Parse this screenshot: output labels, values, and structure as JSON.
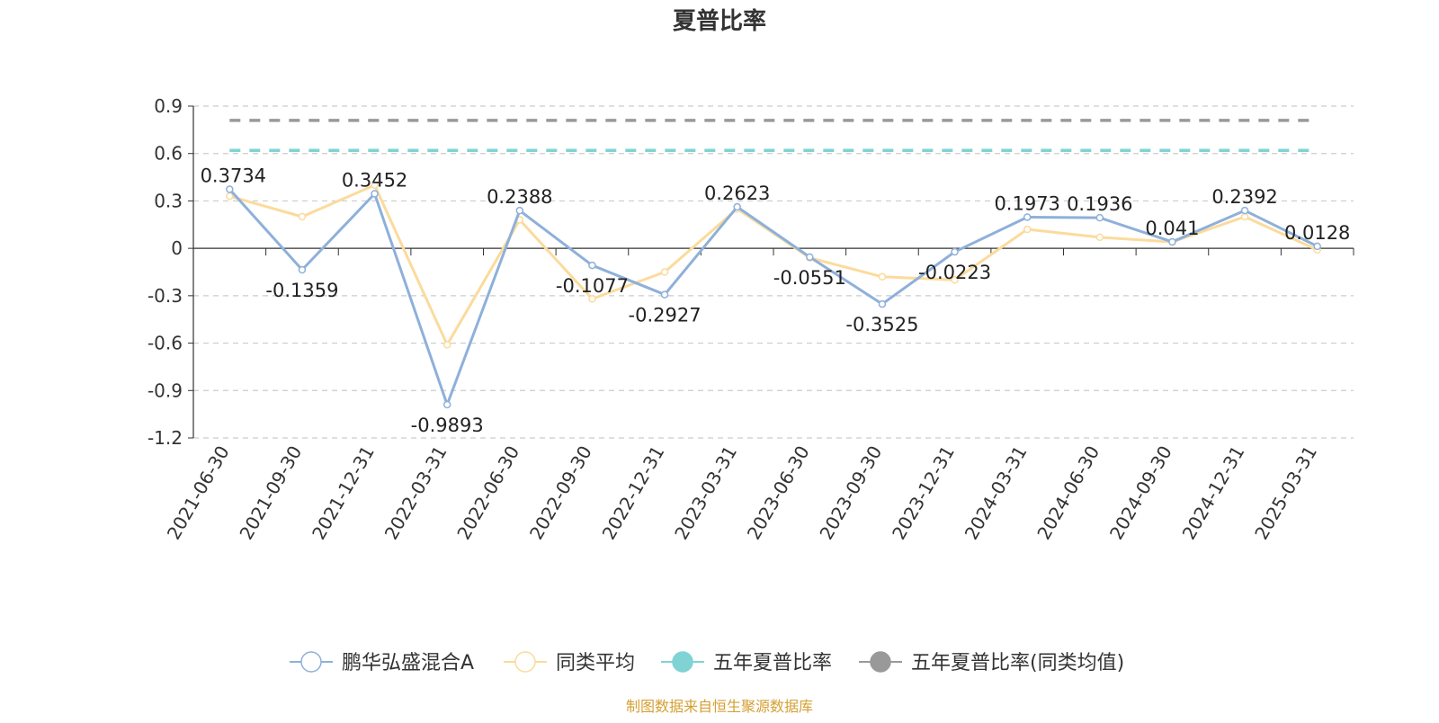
{
  "chart_data": {
    "type": "line",
    "title": "夏普比率",
    "xlabel": "",
    "ylabel": "",
    "ylim": [
      -1.2,
      0.9
    ],
    "yticks": [
      0.9,
      0.6,
      0.3,
      0,
      -0.3,
      -0.6,
      -0.9,
      -1.2
    ],
    "grid": true,
    "legend_position": "bottom",
    "categories": [
      "2021-06-30",
      "2021-09-30",
      "2021-12-31",
      "2022-03-31",
      "2022-06-30",
      "2022-09-30",
      "2022-12-31",
      "2023-03-31",
      "2023-06-30",
      "2023-09-30",
      "2023-12-31",
      "2024-03-31",
      "2024-06-30",
      "2024-09-30",
      "2024-12-31",
      "2025-03-31"
    ],
    "series": [
      {
        "name": "鹏华弘盛混合A",
        "color": "#8eb0da",
        "values": [
          0.3734,
          -0.1359,
          0.3452,
          -0.9893,
          0.2388,
          -0.1077,
          -0.2927,
          0.2623,
          -0.0551,
          -0.3525,
          -0.0223,
          0.1973,
          0.1936,
          0.041,
          0.2392,
          0.0128
        ],
        "labels": [
          "0.3734",
          "-0.1359",
          "0.3452",
          "-0.9893",
          "0.2388",
          "-0.1077",
          "-0.2927",
          "0.2623",
          "-0.0551",
          "-0.3525",
          "-0.0223",
          "0.1973",
          "0.1936",
          "0.041",
          "0.2392",
          "0.0128"
        ]
      },
      {
        "name": "同类平均",
        "color": "#fbdb9c",
        "values": [
          0.33,
          0.2,
          0.4,
          -0.61,
          0.18,
          -0.32,
          -0.15,
          0.25,
          -0.06,
          -0.18,
          -0.2,
          0.12,
          0.07,
          0.04,
          0.2,
          -0.01
        ]
      }
    ],
    "reference_lines": [
      {
        "name": "五年夏普比率",
        "color": "#7fd3d4",
        "value": 0.62
      },
      {
        "name": "五年夏普比率(同类均值)",
        "color": "#999999",
        "value": 0.81
      }
    ]
  },
  "footer": {
    "source_text": "制图数据来自恒生聚源数据库",
    "source_color": "#d4a033"
  }
}
